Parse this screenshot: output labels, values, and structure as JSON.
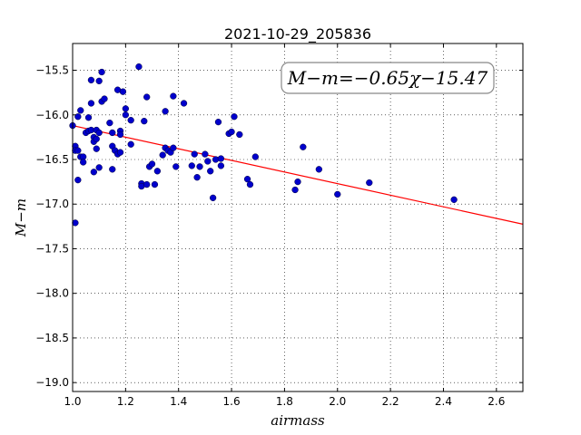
{
  "chart_data": {
    "type": "scatter",
    "title": "2021-10-29_205836",
    "xlabel": "airmass",
    "ylabel": "M−m",
    "annotation": "M−m=−0.65χ−15.47",
    "xlim": [
      1.0,
      2.7
    ],
    "ylim": [
      -19.1,
      -15.2
    ],
    "y_inverted": true,
    "grid": true,
    "xticks": [
      "1.0",
      "1.2",
      "1.4",
      "1.6",
      "1.8",
      "2.0",
      "2.2",
      "2.4",
      "2.6"
    ],
    "yticks": [
      "−15.5",
      "−16.0",
      "−16.5",
      "−17.0",
      "−17.5",
      "−18.0",
      "−18.5",
      "−19.0"
    ],
    "xtick_values": [
      1.0,
      1.2,
      1.4,
      1.6,
      1.8,
      2.0,
      2.2,
      2.4,
      2.6
    ],
    "ytick_values": [
      -15.5,
      -16.0,
      -16.5,
      -17.0,
      -17.5,
      -18.0,
      -18.5,
      -19.0
    ],
    "fit": {
      "slope": -0.65,
      "intercept": -15.47,
      "color": "#ff0000"
    },
    "marker_color": "#0000cc",
    "points": [
      [
        1.0,
        -16.12
      ],
      [
        1.01,
        -16.35
      ],
      [
        1.01,
        -16.4
      ],
      [
        1.01,
        -17.21
      ],
      [
        1.02,
        -16.02
      ],
      [
        1.02,
        -16.4
      ],
      [
        1.02,
        -16.73
      ],
      [
        1.03,
        -15.95
      ],
      [
        1.03,
        -16.47
      ],
      [
        1.04,
        -16.47
      ],
      [
        1.04,
        -16.53
      ],
      [
        1.05,
        -16.2
      ],
      [
        1.06,
        -16.03
      ],
      [
        1.06,
        -16.18
      ],
      [
        1.07,
        -15.61
      ],
      [
        1.07,
        -15.87
      ],
      [
        1.07,
        -16.17
      ],
      [
        1.08,
        -16.25
      ],
      [
        1.08,
        -16.3
      ],
      [
        1.08,
        -16.64
      ],
      [
        1.09,
        -16.17
      ],
      [
        1.09,
        -16.27
      ],
      [
        1.09,
        -16.38
      ],
      [
        1.1,
        -15.62
      ],
      [
        1.1,
        -16.2
      ],
      [
        1.1,
        -16.59
      ],
      [
        1.11,
        -15.52
      ],
      [
        1.11,
        -15.85
      ],
      [
        1.12,
        -15.82
      ],
      [
        1.14,
        -16.09
      ],
      [
        1.15,
        -16.2
      ],
      [
        1.15,
        -16.35
      ],
      [
        1.15,
        -16.61
      ],
      [
        1.16,
        -16.4
      ],
      [
        1.17,
        -15.72
      ],
      [
        1.17,
        -16.44
      ],
      [
        1.18,
        -16.18
      ],
      [
        1.18,
        -16.22
      ],
      [
        1.18,
        -16.42
      ],
      [
        1.19,
        -15.74
      ],
      [
        1.2,
        -15.93
      ],
      [
        1.2,
        -16.0
      ],
      [
        1.22,
        -16.06
      ],
      [
        1.22,
        -16.33
      ],
      [
        1.25,
        -15.46
      ],
      [
        1.26,
        -16.77
      ],
      [
        1.26,
        -16.8
      ],
      [
        1.27,
        -16.07
      ],
      [
        1.28,
        -15.8
      ],
      [
        1.28,
        -16.78
      ],
      [
        1.29,
        -16.58
      ],
      [
        1.3,
        -16.55
      ],
      [
        1.31,
        -16.78
      ],
      [
        1.32,
        -16.63
      ],
      [
        1.34,
        -16.45
      ],
      [
        1.35,
        -15.96
      ],
      [
        1.35,
        -16.37
      ],
      [
        1.36,
        -16.4
      ],
      [
        1.37,
        -16.42
      ],
      [
        1.38,
        -15.79
      ],
      [
        1.38,
        -16.37
      ],
      [
        1.39,
        -16.58
      ],
      [
        1.42,
        -15.87
      ],
      [
        1.45,
        -16.57
      ],
      [
        1.46,
        -16.44
      ],
      [
        1.47,
        -16.7
      ],
      [
        1.48,
        -16.58
      ],
      [
        1.5,
        -16.44
      ],
      [
        1.51,
        -16.52
      ],
      [
        1.52,
        -16.63
      ],
      [
        1.53,
        -16.93
      ],
      [
        1.54,
        -16.5
      ],
      [
        1.55,
        -16.08
      ],
      [
        1.56,
        -16.49
      ],
      [
        1.56,
        -16.57
      ],
      [
        1.59,
        -16.21
      ],
      [
        1.6,
        -16.19
      ],
      [
        1.61,
        -16.02
      ],
      [
        1.63,
        -16.22
      ],
      [
        1.66,
        -16.72
      ],
      [
        1.67,
        -16.78
      ],
      [
        1.69,
        -16.47
      ],
      [
        1.84,
        -16.84
      ],
      [
        1.85,
        -16.75
      ],
      [
        1.87,
        -16.36
      ],
      [
        1.93,
        -16.61
      ],
      [
        2.0,
        -16.89
      ],
      [
        2.12,
        -16.76
      ],
      [
        2.44,
        -16.95
      ]
    ]
  }
}
